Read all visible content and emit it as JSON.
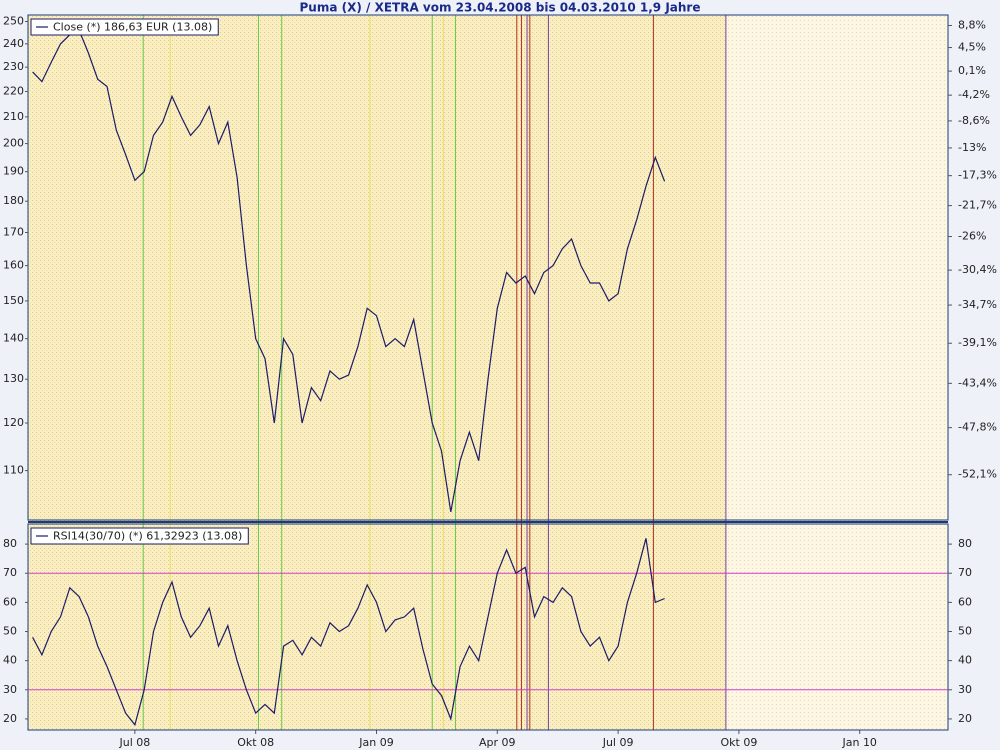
{
  "chart_data": [
    {
      "type": "line",
      "title": "Puma (X) / XETRA vom 23.04.2008 bis 04.03.2010 1,9 Jahre",
      "categories": [
        null,
        null,
        null,
        null,
        null,
        null,
        null,
        null,
        null,
        null,
        null,
        "Jul 08",
        null,
        null,
        null,
        null,
        null,
        null,
        null,
        null,
        null,
        null,
        null,
        null,
        "Okt 08",
        null,
        null,
        null,
        null,
        null,
        null,
        null,
        null,
        null,
        null,
        null,
        null,
        "Jan 09",
        null,
        null,
        null,
        null,
        null,
        null,
        null,
        null,
        null,
        null,
        null,
        null,
        "Apr 09",
        null,
        null,
        null,
        null,
        null,
        null,
        null,
        null,
        null,
        null,
        null,
        null,
        "Jul 09",
        null,
        null,
        null,
        null,
        null,
        null,
        null,
        null,
        null,
        null,
        null,
        null,
        "Okt 09",
        null,
        null,
        null,
        null,
        null,
        null,
        null,
        null,
        null,
        null,
        null,
        null,
        "Jan 10",
        null,
        null,
        null,
        null,
        null,
        null,
        null,
        null,
        null
      ],
      "series": [
        {
          "name": "Close (*) 186,63 EUR (13.08)",
          "color": "#1c1c6b",
          "values": [
            228,
            224,
            232,
            240,
            244,
            246,
            236,
            225,
            222,
            205,
            196,
            187,
            190,
            203,
            208,
            218,
            210,
            203,
            207,
            214,
            200,
            208,
            188,
            160,
            140,
            135,
            120,
            140,
            136,
            120,
            128,
            125,
            132,
            130,
            131,
            138,
            148,
            146,
            138,
            140,
            138,
            145,
            132,
            120,
            114,
            102,
            112,
            118,
            112,
            130,
            148,
            158,
            155,
            157,
            152,
            158,
            160,
            165,
            168,
            160,
            155,
            155,
            150,
            152,
            165,
            174,
            185,
            195,
            186.63,
            null,
            null,
            null,
            null,
            null,
            null,
            null,
            null,
            null,
            null,
            null,
            null,
            null,
            null,
            null,
            null,
            null,
            null,
            null,
            null,
            null,
            null,
            null,
            null,
            null,
            null,
            null,
            null,
            null,
            null
          ]
        }
      ],
      "ylim": [
        100.5,
        253
      ],
      "ylog": true,
      "yticks": [
        110,
        120,
        130,
        140,
        150,
        160,
        170,
        180,
        190,
        200,
        210,
        220,
        230,
        240,
        250
      ],
      "y2lim": [
        -55.9,
        10.9
      ],
      "y2ticks": [
        {
          "value": 8.8,
          "label": "8,8%"
        },
        {
          "value": 4.5,
          "label": "4,5%"
        },
        {
          "value": 0.1,
          "label": "0,1%"
        },
        {
          "value": -4.2,
          "label": "-4,2%"
        },
        {
          "value": -8.6,
          "label": "-8,6%"
        },
        {
          "value": -13,
          "label": "-13%"
        },
        {
          "value": -17.3,
          "label": "-17,3%"
        },
        {
          "value": -21.7,
          "label": "-21,7%"
        },
        {
          "value": -26,
          "label": "-26%"
        },
        {
          "value": -30.4,
          "label": "-30,4%"
        },
        {
          "value": -34.7,
          "label": "-34,7%"
        },
        {
          "value": -39.1,
          "label": "-39,1%"
        },
        {
          "value": -43.4,
          "label": "-43,4%"
        },
        {
          "value": -47.8,
          "label": "-47,8%"
        },
        {
          "value": -52.1,
          "label": "-52,1%"
        }
      ],
      "signals": [
        {
          "x": 11.9,
          "color": "#66cc44"
        },
        {
          "x": 24.3,
          "color": "#66cc44"
        },
        {
          "x": 26.8,
          "color": "#66cc44"
        },
        {
          "x": 43.0,
          "color": "#66cc44"
        },
        {
          "x": 45.5,
          "color": "#66cc44"
        },
        {
          "x": 14.8,
          "color": "#e8e060"
        },
        {
          "x": 36.3,
          "color": "#e8e060"
        },
        {
          "x": 44.2,
          "color": "#e8e060"
        },
        {
          "x": 52.1,
          "color": "#b03020"
        },
        {
          "x": 52.6,
          "color": "#b03020"
        },
        {
          "x": 53.5,
          "color": "#b03020"
        },
        {
          "x": 66.8,
          "color": "#b03020"
        },
        {
          "x": 53.2,
          "color": "#7040a0"
        },
        {
          "x": 55.5,
          "color": "#7040a0"
        },
        {
          "x": 74.6,
          "color": "#7040a0"
        }
      ]
    },
    {
      "type": "line",
      "series": [
        {
          "name": "RSI14(30/70) (*) 61,32923 (13.08)",
          "color": "#1c1c6b",
          "values": [
            48,
            42,
            50,
            55,
            65,
            62,
            55,
            45,
            38,
            30,
            22,
            18,
            30,
            50,
            60,
            67,
            55,
            48,
            52,
            58,
            45,
            52,
            40,
            30,
            22,
            25,
            22,
            45,
            47,
            42,
            48,
            45,
            53,
            50,
            52,
            58,
            66,
            60,
            50,
            54,
            55,
            58,
            44,
            32,
            28,
            20,
            38,
            45,
            40,
            55,
            70,
            78,
            70,
            72,
            55,
            62,
            60,
            65,
            62,
            50,
            45,
            48,
            40,
            45,
            60,
            70,
            82,
            60,
            61.33,
            null,
            null,
            null,
            null,
            null,
            null,
            null,
            null,
            null,
            null,
            null,
            null,
            null,
            null,
            null,
            null,
            null,
            null,
            null,
            null,
            null,
            null,
            null,
            null,
            null,
            null,
            null,
            null,
            null,
            null
          ]
        }
      ],
      "ylim": [
        16.2,
        86.9
      ],
      "yticks": [
        20,
        30,
        40,
        50,
        60,
        70,
        80
      ],
      "levels": [
        30,
        70
      ],
      "level_color": "#d040d0"
    }
  ]
}
